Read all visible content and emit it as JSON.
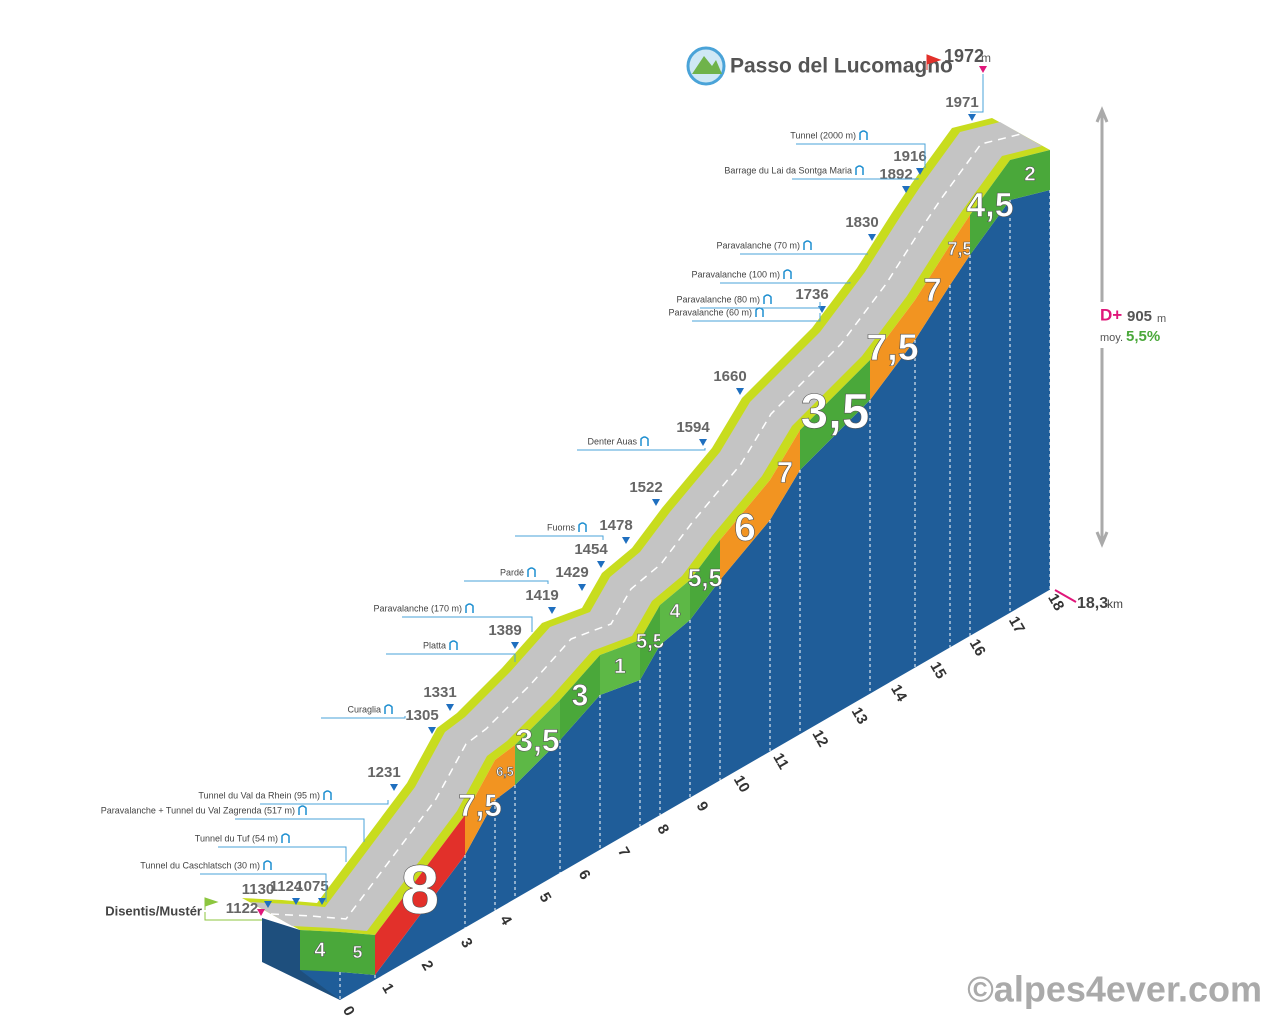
{
  "title": "Passo del Lucomagno",
  "summit": {
    "altitude": "1972",
    "unit": "m"
  },
  "start": {
    "name": "Disentis/Mustér",
    "altitude": "1122"
  },
  "stats": {
    "gain_label": "D+",
    "gain": "905",
    "gain_unit": "m",
    "avg_label": "moy.",
    "avg": "5,5%"
  },
  "distance": {
    "value": "18,3",
    "unit": "km"
  },
  "altitudes": [
    "1130",
    "1124",
    "1075",
    "1231",
    "1305",
    "1331",
    "1389",
    "1419",
    "1429",
    "1454",
    "1478",
    "1522",
    "1594",
    "1660",
    "1736",
    "1830",
    "1892",
    "1916",
    "1971"
  ],
  "landmarks": [
    {
      "label": "Tunnel du Caschlatsch (30 m)"
    },
    {
      "label": "Tunnel du Tuf (54 m)"
    },
    {
      "label": "Paravalanche + Tunnel du Val Zagrenda (517 m)"
    },
    {
      "label": "Tunnel du Val da Rhein (95 m)"
    },
    {
      "label": "Curaglia"
    },
    {
      "label": "Platta"
    },
    {
      "label": "Paravalanche (170 m)"
    },
    {
      "label": "Pardé"
    },
    {
      "label": "Fuorns"
    },
    {
      "label": "Denter Auas"
    },
    {
      "label": "Paravalanche (60 m)"
    },
    {
      "label": "Paravalanche (80 m)"
    },
    {
      "label": "Paravalanche (100 m)"
    },
    {
      "label": "Paravalanche (70 m)"
    },
    {
      "label": "Barrage du Lai da Sontga Maria"
    },
    {
      "label": "Tunnel (2000 m)"
    }
  ],
  "km_ticks": [
    "0",
    "1",
    "2",
    "3",
    "4",
    "5",
    "6",
    "7",
    "8",
    "9",
    "10",
    "11",
    "12",
    "13",
    "14",
    "15",
    "16",
    "17",
    "18"
  ],
  "gradients": [
    {
      "label": "4",
      "color": "#4aa83a"
    },
    {
      "label": "5",
      "color": "#4aa83a"
    },
    {
      "label": "8",
      "color": "#e2302a"
    },
    {
      "label": "7,5",
      "color": "#f29421"
    },
    {
      "label": "6,5",
      "color": "#f29421"
    },
    {
      "label": "3,5",
      "color": "#5db846"
    },
    {
      "label": "3",
      "color": "#4aa83a"
    },
    {
      "label": "1",
      "color": "#5db846"
    },
    {
      "label": "5,5",
      "color": "#4aa83a"
    },
    {
      "label": "4",
      "color": "#5db846"
    },
    {
      "label": "5,5",
      "color": "#4aa83a"
    },
    {
      "label": "6",
      "color": "#f29421"
    },
    {
      "label": "7",
      "color": "#f29421"
    },
    {
      "label": "3,5",
      "color": "#4aa83a"
    },
    {
      "label": "7,5",
      "color": "#f29421"
    },
    {
      "label": "7",
      "color": "#f29421"
    },
    {
      "label": "7,5",
      "color": "#f29421"
    },
    {
      "label": "4,5",
      "color": "#4aa83a"
    },
    {
      "label": "2",
      "color": "#4aa83a"
    }
  ],
  "copyright": "©alpes4ever.com"
}
